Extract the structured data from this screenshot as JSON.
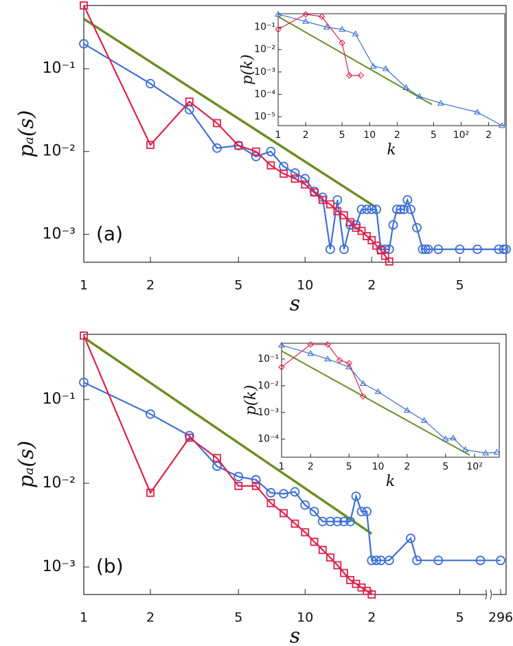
{
  "chart_data": [
    {
      "type": "line",
      "xscale": "log",
      "yscale": "log",
      "annotation": "(a)",
      "xlabel": "s",
      "ylabel": "pₐ(s)",
      "xlim": [
        1,
        81
      ],
      "ylim": [
        0.00046,
        0.58
      ],
      "xticks": [
        1,
        2,
        5,
        10,
        {
          "value": 20,
          "label": "2"
        },
        {
          "value": 50,
          "label": "5"
        }
      ],
      "yticks": [
        {
          "value": 0.1,
          "label": "10⁻¹"
        },
        {
          "value": 0.01,
          "label": "10⁻²"
        },
        {
          "value": 0.001,
          "label": "10⁻³"
        }
      ],
      "series": [
        {
          "color": "#6b8e23",
          "marker": "none",
          "x": [
            1,
            21
          ],
          "values": [
            0.4,
            0.0021
          ]
        },
        {
          "color": "#3b6fd8",
          "marker": "circle",
          "x": [
            1,
            2,
            3,
            4,
            5,
            6,
            7,
            8,
            9,
            10,
            11,
            12,
            13,
            14,
            15,
            16,
            17,
            18,
            19,
            20,
            21,
            22,
            23,
            24,
            25,
            26,
            27,
            28,
            29,
            30,
            32,
            34,
            35,
            36,
            40,
            50,
            60,
            75,
            79,
            81
          ],
          "values": [
            0.2,
            0.066,
            0.032,
            0.011,
            0.0118,
            0.0087,
            0.01,
            0.0066,
            0.0055,
            0.0047,
            0.0033,
            0.0028,
            0.00066,
            0.0026,
            0.00066,
            0.0013,
            0.0013,
            0.002,
            0.002,
            0.002,
            0.002,
            0.00066,
            0.00066,
            0.00066,
            0.0013,
            0.002,
            0.002,
            0.002,
            0.0026,
            0.002,
            0.0012,
            0.00066,
            0.00066,
            0.00066,
            0.00066,
            0.00066,
            0.00066,
            0.00066,
            0.00066,
            0.00066
          ]
        },
        {
          "color": "#e0204a",
          "marker": "square",
          "x": [
            1,
            2,
            3,
            4,
            5,
            6,
            7,
            8,
            9,
            10,
            11,
            12,
            13,
            14,
            15,
            16,
            17,
            18,
            19,
            20,
            21,
            22,
            23,
            24
          ],
          "values": [
            0.58,
            0.012,
            0.04,
            0.022,
            0.0118,
            0.01,
            0.0068,
            0.0054,
            0.0047,
            0.004,
            0.0032,
            0.0026,
            0.0023,
            0.0019,
            0.0017,
            0.0014,
            0.0012,
            0.0011,
            0.00095,
            0.00085,
            0.00073,
            0.00064,
            0.00055,
            0.00047
          ]
        }
      ]
    },
    {
      "type": "line",
      "xscale": "log",
      "yscale": "log",
      "xlabel": "k",
      "ylabel": "p(k)",
      "xlim": [
        1,
        300
      ],
      "ylim": [
        4e-06,
        0.4
      ],
      "xticks": [
        1,
        2,
        5,
        10,
        {
          "value": 20,
          "label": "2"
        },
        {
          "value": 50,
          "label": "5"
        },
        {
          "value": 100,
          "label": "10²"
        },
        {
          "value": 200,
          "label": "2"
        }
      ],
      "yticks": [
        {
          "value": 0.1,
          "label": "10⁻¹"
        },
        {
          "value": 0.01,
          "label": "10⁻²"
        },
        {
          "value": 0.001,
          "label": "10⁻³"
        },
        {
          "value": 0.0001,
          "label": "10⁻⁴"
        },
        {
          "value": 1e-05,
          "label": "10⁻⁵"
        }
      ],
      "series": [
        {
          "color": "#6b8e23",
          "marker": "none",
          "x": [
            1,
            48
          ],
          "values": [
            0.3,
            3.5e-05
          ]
        },
        {
          "color": "#3b6fd8",
          "marker": "triangle",
          "x": [
            1,
            2,
            3.4,
            5,
            7,
            11,
            15,
            25,
            35,
            60,
            150,
            280
          ],
          "values": [
            0.38,
            0.18,
            0.1,
            0.08,
            0.05,
            0.0018,
            0.0014,
            0.0002,
            8e-05,
            4e-05,
            1.6e-05,
            4e-06
          ]
        },
        {
          "color": "#e0204a",
          "marker": "diamond",
          "x": [
            1,
            2,
            3,
            5,
            6,
            8
          ],
          "values": [
            0.08,
            0.38,
            0.3,
            0.02,
            0.0007,
            0.0007
          ]
        }
      ]
    },
    {
      "type": "line",
      "xscale": "log",
      "yscale": "log",
      "annotation": "(b)",
      "xlabel": "s",
      "ylabel": "pₐ(s)",
      "axis_break": true,
      "xlim": [
        1,
        81
      ],
      "ylim": [
        0.00047,
        0.6
      ],
      "xticks": [
        1,
        2,
        5,
        10,
        {
          "value": 20,
          "label": "2"
        },
        {
          "value": 50,
          "label": "5"
        },
        296
      ],
      "yticks": [
        {
          "value": 0.1,
          "label": "10⁻¹"
        },
        {
          "value": 0.01,
          "label": "10⁻²"
        },
        {
          "value": 0.001,
          "label": "10⁻³"
        }
      ],
      "series": [
        {
          "color": "#6b8e23",
          "marker": "none",
          "x": [
            1,
            20
          ],
          "values": [
            0.55,
            0.0025
          ]
        },
        {
          "color": "#3b6fd8",
          "marker": "circle",
          "x": [
            1,
            2,
            3,
            4,
            5,
            6,
            7,
            8,
            9,
            10,
            11,
            12,
            13,
            14,
            15,
            16,
            17,
            18,
            19,
            20,
            21,
            22,
            24,
            30,
            32,
            40,
            62,
            296
          ],
          "values": [
            0.16,
            0.067,
            0.037,
            0.016,
            0.012,
            0.011,
            0.0077,
            0.0075,
            0.0079,
            0.0055,
            0.0046,
            0.0035,
            0.0035,
            0.0035,
            0.0035,
            0.0035,
            0.007,
            0.0046,
            0.0046,
            0.0012,
            0.0012,
            0.0012,
            0.0012,
            0.0022,
            0.0012,
            0.0012,
            0.0012,
            0.0012
          ]
        },
        {
          "color": "#e0204a",
          "marker": "square",
          "x": [
            1,
            2,
            3,
            4,
            5,
            6,
            7,
            8,
            9,
            10,
            11,
            12,
            13,
            14,
            15,
            16,
            17,
            18,
            19,
            20
          ],
          "values": [
            0.58,
            0.0077,
            0.035,
            0.02,
            0.0093,
            0.0093,
            0.0058,
            0.0044,
            0.0033,
            0.0026,
            0.002,
            0.0016,
            0.0013,
            0.00105,
            0.00085,
            0.0007,
            0.00063,
            0.00057,
            0.00052,
            0.00047
          ]
        }
      ]
    },
    {
      "type": "line",
      "xscale": "log",
      "yscale": "log",
      "xlabel": "k",
      "ylabel": "p(k)",
      "xlim": [
        1,
        180
      ],
      "ylim": [
        2.1e-05,
        0.39
      ],
      "xticks": [
        1,
        2,
        5,
        10,
        {
          "value": 20,
          "label": "2"
        },
        {
          "value": 50,
          "label": "5"
        },
        {
          "value": 100,
          "label": "10²"
        }
      ],
      "yticks": [
        {
          "value": 0.1,
          "label": "10⁻¹"
        },
        {
          "value": 0.01,
          "label": "10⁻²"
        },
        {
          "value": 0.001,
          "label": "10⁻³"
        },
        {
          "value": 0.0001,
          "label": "10⁻⁴"
        }
      ],
      "series": [
        {
          "color": "#6b8e23",
          "marker": "none",
          "x": [
            1,
            89
          ],
          "values": [
            0.2,
            2.5e-05
          ]
        },
        {
          "color": "#3b6fd8",
          "marker": "triangle",
          "x": [
            1,
            2,
            3,
            5,
            7,
            10,
            20,
            30,
            50,
            60,
            80,
            130,
            170
          ],
          "values": [
            0.33,
            0.16,
            0.1,
            0.05,
            0.012,
            0.006,
            0.0012,
            0.0005,
            0.0001,
            0.00011,
            4e-05,
            3e-05,
            3.2e-05
          ]
        },
        {
          "color": "#e0204a",
          "marker": "diamond",
          "x": [
            1,
            2,
            3,
            4,
            5,
            7
          ],
          "values": [
            0.05,
            0.35,
            0.35,
            0.09,
            0.07,
            0.004
          ]
        }
      ]
    }
  ]
}
